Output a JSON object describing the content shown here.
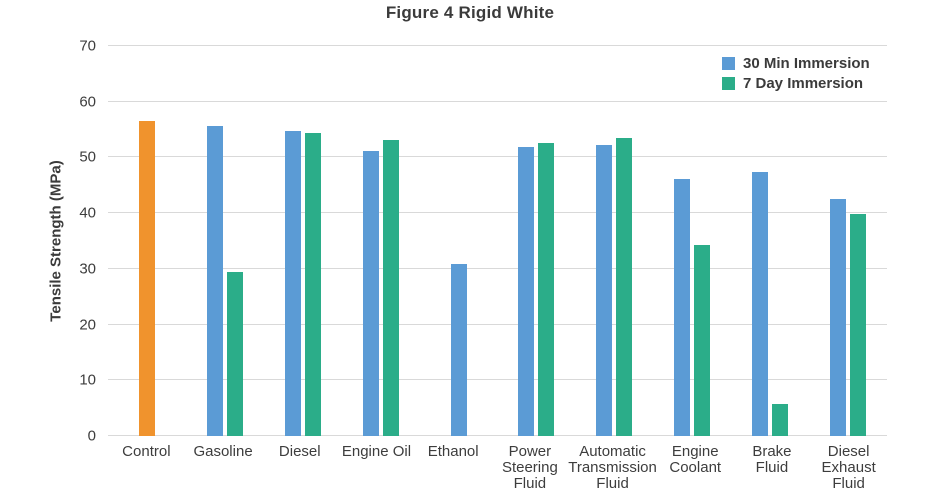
{
  "chart_data": {
    "type": "bar",
    "title": "Figure 4 Rigid White",
    "xlabel": "",
    "ylabel": "Tensile Strength (MPa)",
    "ylim": [
      0,
      70
    ],
    "yticks": [
      0,
      10,
      20,
      30,
      40,
      50,
      60,
      70
    ],
    "grid": "horizontal gridlines only",
    "legend": {
      "position": "top-right",
      "entries": [
        {
          "label": "30 Min Immersion",
          "color": "#5B9BD5"
        },
        {
          "label": "7 Day Immersion",
          "color": "#2BAD89"
        }
      ]
    },
    "colors": {
      "control_bar": "#F0932D",
      "series_30min": "#5B9BD5",
      "series_7day": "#2BAD89",
      "gridline": "#D9D9D9",
      "text": "#3D3D3D"
    },
    "categories": [
      "Control",
      "Gasoline",
      "Diesel",
      "Engine Oil",
      "Ethanol",
      "Power Steering Fluid",
      "Automatic Transmission Fluid",
      "Engine Coolant",
      "Brake Fluid",
      "Diesel Exhaust Fluid"
    ],
    "category_labels": [
      "Control",
      "Gasoline",
      "Diesel",
      "Engine Oil",
      "Ethanol",
      "Power\nSteering\nFluid",
      "Automatic\nTransmission\nFluid",
      "Engine\nCoolant",
      "Brake\nFluid",
      "Diesel\nExhaust\nFluid"
    ],
    "series": [
      {
        "name": "Control",
        "color": "#F0932D",
        "in_legend": false,
        "values": [
          56.5,
          null,
          null,
          null,
          null,
          null,
          null,
          null,
          null,
          null
        ]
      },
      {
        "name": "30 Min Immersion",
        "color": "#5B9BD5",
        "in_legend": true,
        "values": [
          null,
          55.7,
          54.8,
          51.1,
          30.8,
          51.9,
          52.2,
          46.1,
          47.3,
          42.5
        ]
      },
      {
        "name": "7 Day Immersion",
        "color": "#2BAD89",
        "in_legend": true,
        "values": [
          null,
          29.4,
          54.3,
          53.2,
          null,
          52.6,
          53.5,
          34.2,
          5.7,
          39.8
        ]
      }
    ]
  }
}
